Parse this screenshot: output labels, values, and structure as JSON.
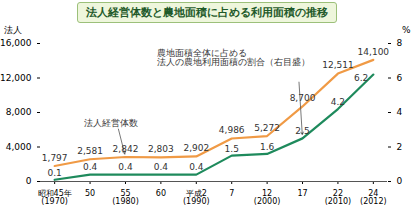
{
  "chart_data": {
    "type": "line",
    "title": "法人経営体数と農地面積に占める利用面積の推移",
    "categories": [
      "昭和45年\n(1970)",
      "50",
      "55\n(1980)",
      "60",
      "平成2\n(1990)",
      "7",
      "12\n(2000)",
      "17",
      "22\n(2010)",
      "24\n(2012)"
    ],
    "ylabel": "法人",
    "y2label": "%",
    "ylim": [
      0,
      16000
    ],
    "yticks": [
      0,
      {
        "value": 4000,
        "label": "4,000"
      },
      {
        "value": 8000,
        "label": "8,000"
      },
      {
        "value": 12000,
        "label": "12,000"
      },
      {
        "value": 16000,
        "label": "16,000"
      }
    ],
    "y2lim": [
      0,
      8
    ],
    "y2ticks": [
      0,
      2,
      4,
      6,
      8
    ],
    "grid": false,
    "data_labels": true,
    "series": [
      {
        "name": "法人経営体数",
        "color": "#f09a45",
        "axis": "y",
        "values": [
          1797,
          2581,
          2842,
          2803,
          2902,
          4986,
          5272,
          8700,
          12511,
          14100
        ],
        "value_labels": [
          "1,797",
          "2,581",
          "2,842",
          "2,803",
          "2,902",
          "4,986",
          "5,272",
          "8,700",
          "12,511",
          "14,100"
        ]
      },
      {
        "name": "農地面積全体に占める\n法人の農地利用面積の割合（右目盛）",
        "color": "#1e8a5c",
        "axis": "y2",
        "values": [
          0.1,
          0.4,
          0.4,
          0.4,
          0.4,
          1.5,
          1.6,
          2.5,
          4.2,
          6.2
        ]
      }
    ]
  }
}
